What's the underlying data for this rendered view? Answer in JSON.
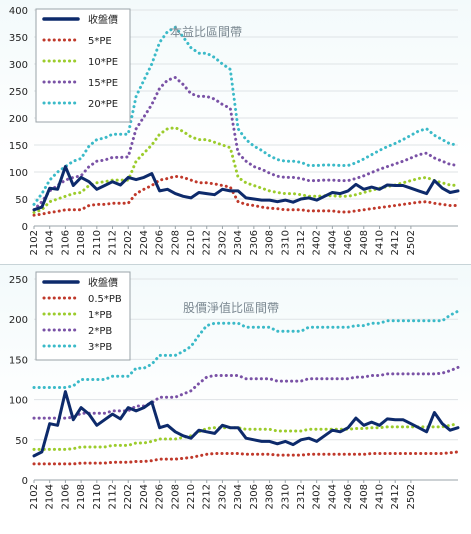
{
  "chart_data": [
    {
      "type": "line",
      "title": "本益比區間帶",
      "xlabel": "",
      "ylabel": "",
      "ylim": [
        0,
        400
      ],
      "yticks": [
        0,
        50,
        100,
        150,
        200,
        250,
        300,
        350,
        400
      ],
      "grid": true,
      "legend_position": "top-left",
      "xtick_labels": [
        "2102",
        "2104",
        "2106",
        "2108",
        "2110",
        "2112",
        "2202",
        "2204",
        "2206",
        "2208",
        "2210",
        "2212",
        "2302",
        "2304",
        "2306",
        "2308",
        "2310",
        "2312",
        "2402",
        "2404",
        "2406",
        "2408",
        "2410",
        "2412",
        "2502"
      ],
      "series": [
        {
          "name": "收盤價",
          "color": "#0d2a6b",
          "style": "solid",
          "values": [
            30,
            35,
            70,
            68,
            110,
            75,
            90,
            82,
            68,
            75,
            82,
            76,
            90,
            86,
            90,
            97,
            65,
            68,
            60,
            55,
            52,
            62,
            60,
            58,
            68,
            65,
            65,
            52,
            50,
            48,
            48,
            45,
            48,
            44,
            50,
            52,
            48,
            55,
            62,
            60,
            65,
            77,
            68,
            72,
            68,
            76,
            75,
            75,
            70,
            65,
            60,
            84,
            70,
            62,
            65
          ]
        },
        {
          "name": "5*PE",
          "color": "#c0392b",
          "style": "dotted",
          "values": [
            20,
            22,
            25,
            27,
            30,
            30,
            30,
            38,
            40,
            40,
            42,
            42,
            42,
            60,
            68,
            75,
            85,
            88,
            92,
            90,
            85,
            80,
            80,
            78,
            75,
            72,
            45,
            40,
            38,
            35,
            33,
            32,
            30,
            30,
            30,
            28,
            28,
            28,
            28,
            26,
            26,
            28,
            30,
            32,
            34,
            36,
            38,
            40,
            42,
            44,
            45,
            42,
            40,
            38,
            38
          ]
        },
        {
          "name": "10*PE",
          "color": "#9ccc2c",
          "style": "dotted",
          "values": [
            25,
            30,
            45,
            50,
            55,
            60,
            62,
            75,
            80,
            82,
            85,
            85,
            85,
            120,
            135,
            150,
            170,
            180,
            182,
            175,
            165,
            160,
            160,
            155,
            150,
            145,
            90,
            80,
            75,
            70,
            65,
            62,
            60,
            60,
            58,
            55,
            55,
            56,
            56,
            55,
            55,
            58,
            62,
            66,
            70,
            73,
            76,
            80,
            84,
            88,
            90,
            84,
            80,
            76,
            75
          ]
        },
        {
          "name": "15*PE",
          "color": "#7a52a6",
          "style": "dotted",
          "values": [
            30,
            45,
            65,
            75,
            85,
            90,
            93,
            110,
            120,
            122,
            127,
            127,
            128,
            180,
            202,
            225,
            255,
            270,
            275,
            262,
            245,
            240,
            240,
            235,
            225,
            218,
            135,
            120,
            110,
            105,
            98,
            92,
            90,
            90,
            88,
            84,
            84,
            85,
            85,
            84,
            84,
            88,
            93,
            99,
            105,
            110,
            115,
            120,
            126,
            132,
            135,
            126,
            120,
            114,
            112
          ]
        },
        {
          "name": "20*PE",
          "color": "#3bbac8",
          "style": "dotted",
          "values": [
            40,
            60,
            85,
            100,
            110,
            120,
            125,
            148,
            160,
            163,
            170,
            170,
            170,
            240,
            270,
            300,
            340,
            360,
            368,
            350,
            330,
            320,
            320,
            312,
            300,
            290,
            180,
            160,
            148,
            140,
            130,
            123,
            120,
            120,
            118,
            112,
            112,
            113,
            113,
            112,
            112,
            117,
            124,
            132,
            140,
            147,
            153,
            160,
            168,
            176,
            180,
            168,
            160,
            152,
            150
          ]
        }
      ]
    },
    {
      "type": "line",
      "title": "股價淨值比區間帶",
      "xlabel": "",
      "ylabel": "",
      "ylim": [
        0,
        250
      ],
      "yticks": [
        0,
        50,
        100,
        150,
        200,
        250
      ],
      "grid": true,
      "legend_position": "top-left",
      "xtick_labels": [
        "2102",
        "2104",
        "2106",
        "2108",
        "2110",
        "2112",
        "2202",
        "2204",
        "2206",
        "2208",
        "2210",
        "2212",
        "2302",
        "2304",
        "2306",
        "2308",
        "2310",
        "2312",
        "2402",
        "2404",
        "2406",
        "2408",
        "2410",
        "2412",
        "2502"
      ],
      "series": [
        {
          "name": "收盤價",
          "color": "#0d2a6b",
          "style": "solid",
          "values": [
            30,
            35,
            70,
            68,
            110,
            75,
            90,
            82,
            68,
            75,
            82,
            76,
            90,
            86,
            90,
            97,
            65,
            68,
            60,
            55,
            52,
            62,
            60,
            58,
            68,
            65,
            65,
            52,
            50,
            48,
            48,
            45,
            48,
            44,
            50,
            52,
            48,
            55,
            62,
            60,
            65,
            77,
            68,
            72,
            68,
            76,
            75,
            75,
            70,
            65,
            60,
            84,
            70,
            62,
            65
          ]
        },
        {
          "name": "0.5*PB",
          "color": "#c0392b",
          "style": "dotted",
          "values": [
            20,
            20,
            20,
            20,
            20,
            20,
            21,
            21,
            21,
            21,
            22,
            22,
            22,
            23,
            23,
            24,
            26,
            26,
            26,
            27,
            28,
            30,
            32,
            33,
            33,
            33,
            33,
            32,
            32,
            32,
            32,
            31,
            31,
            31,
            31,
            32,
            32,
            32,
            32,
            32,
            32,
            32,
            32,
            33,
            33,
            33,
            33,
            33,
            33,
            33,
            33,
            33,
            33,
            34,
            35
          ]
        },
        {
          "name": "1*PB",
          "color": "#9ccc2c",
          "style": "dotted",
          "values": [
            38,
            38,
            38,
            38,
            38,
            39,
            41,
            41,
            41,
            41,
            43,
            43,
            43,
            46,
            46,
            48,
            51,
            51,
            51,
            53,
            55,
            60,
            64,
            65,
            65,
            65,
            65,
            63,
            63,
            63,
            63,
            61,
            61,
            61,
            61,
            63,
            63,
            63,
            63,
            63,
            63,
            64,
            64,
            65,
            65,
            66,
            66,
            66,
            66,
            66,
            66,
            66,
            66,
            68,
            70
          ]
        },
        {
          "name": "2*PB",
          "color": "#7a52a6",
          "style": "dotted",
          "values": [
            77,
            77,
            77,
            77,
            77,
            78,
            83,
            83,
            83,
            83,
            86,
            86,
            86,
            92,
            92,
            96,
            103,
            103,
            103,
            107,
            111,
            120,
            128,
            130,
            130,
            130,
            130,
            126,
            126,
            126,
            126,
            123,
            123,
            123,
            123,
            126,
            126,
            126,
            126,
            126,
            126,
            128,
            128,
            130,
            130,
            132,
            132,
            132,
            132,
            132,
            132,
            132,
            133,
            136,
            140
          ]
        },
        {
          "name": "3*PB",
          "color": "#3bbac8",
          "style": "dotted",
          "values": [
            115,
            115,
            115,
            115,
            115,
            117,
            125,
            125,
            125,
            125,
            129,
            129,
            129,
            139,
            139,
            144,
            155,
            155,
            155,
            160,
            166,
            180,
            192,
            195,
            195,
            195,
            195,
            190,
            190,
            190,
            190,
            185,
            185,
            185,
            185,
            190,
            190,
            190,
            190,
            190,
            190,
            192,
            192,
            195,
            195,
            198,
            198,
            198,
            198,
            198,
            198,
            198,
            198,
            205,
            210
          ]
        }
      ]
    }
  ]
}
